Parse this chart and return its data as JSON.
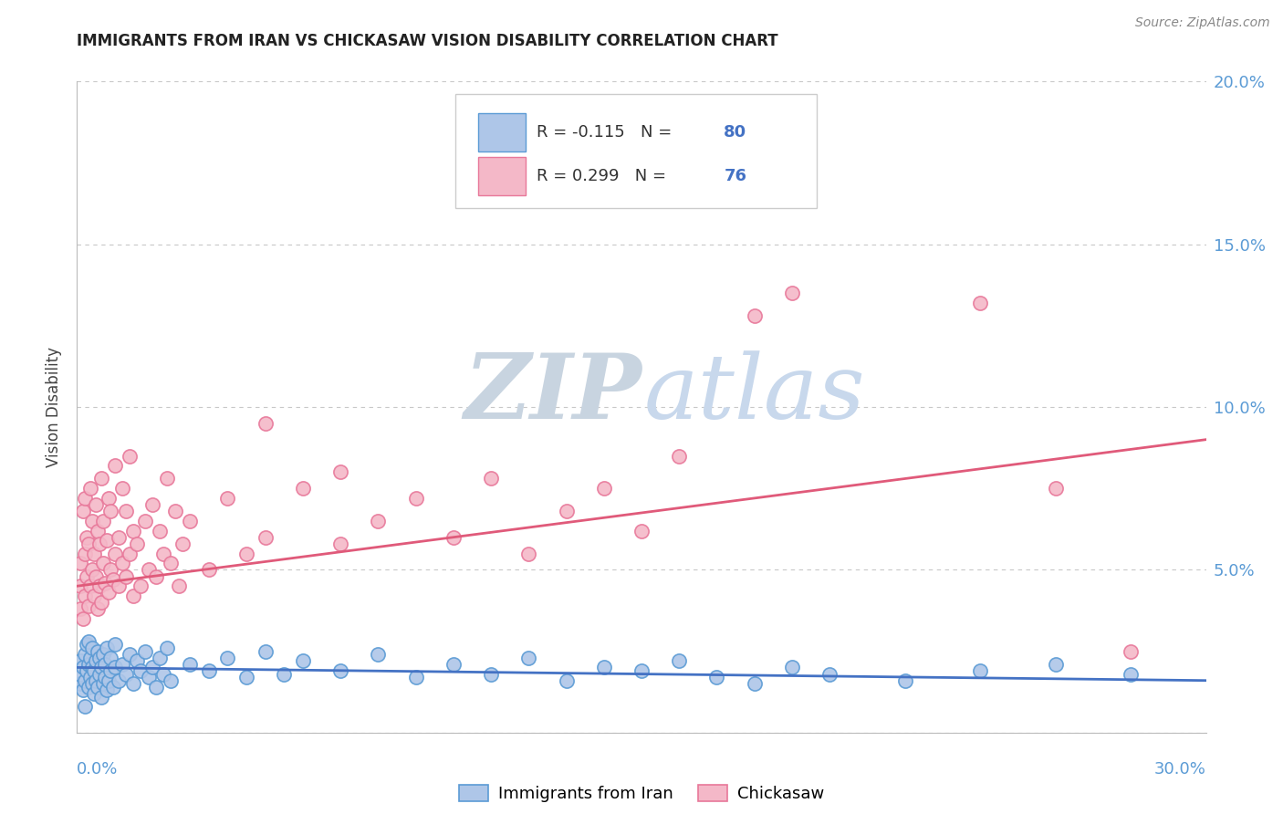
{
  "title": "IMMIGRANTS FROM IRAN VS CHICKASAW VISION DISABILITY CORRELATION CHART",
  "source": "Source: ZipAtlas.com",
  "ylabel": "Vision Disability",
  "legend_bottom": [
    "Immigrants from Iran",
    "Chickasaw"
  ],
  "blue_scatter": [
    [
      0.1,
      1.5
    ],
    [
      0.1,
      1.8
    ],
    [
      0.1,
      2.2
    ],
    [
      0.15,
      1.3
    ],
    [
      0.15,
      2.0
    ],
    [
      0.2,
      1.6
    ],
    [
      0.2,
      2.4
    ],
    [
      0.2,
      0.8
    ],
    [
      0.25,
      1.9
    ],
    [
      0.25,
      2.7
    ],
    [
      0.3,
      1.4
    ],
    [
      0.3,
      2.1
    ],
    [
      0.3,
      2.8
    ],
    [
      0.35,
      1.7
    ],
    [
      0.35,
      2.3
    ],
    [
      0.4,
      1.5
    ],
    [
      0.4,
      2.0
    ],
    [
      0.4,
      2.6
    ],
    [
      0.45,
      1.2
    ],
    [
      0.45,
      1.9
    ],
    [
      0.5,
      1.6
    ],
    [
      0.5,
      2.2
    ],
    [
      0.55,
      1.4
    ],
    [
      0.55,
      2.5
    ],
    [
      0.6,
      1.8
    ],
    [
      0.6,
      2.3
    ],
    [
      0.65,
      1.1
    ],
    [
      0.65,
      2.0
    ],
    [
      0.7,
      1.5
    ],
    [
      0.7,
      2.4
    ],
    [
      0.75,
      1.7
    ],
    [
      0.75,
      2.1
    ],
    [
      0.8,
      1.3
    ],
    [
      0.8,
      2.6
    ],
    [
      0.85,
      1.6
    ],
    [
      0.9,
      1.9
    ],
    [
      0.9,
      2.3
    ],
    [
      0.95,
      1.4
    ],
    [
      1.0,
      2.0
    ],
    [
      1.0,
      2.7
    ],
    [
      1.1,
      1.6
    ],
    [
      1.2,
      2.1
    ],
    [
      1.3,
      1.8
    ],
    [
      1.4,
      2.4
    ],
    [
      1.5,
      1.5
    ],
    [
      1.6,
      2.2
    ],
    [
      1.7,
      1.9
    ],
    [
      1.8,
      2.5
    ],
    [
      1.9,
      1.7
    ],
    [
      2.0,
      2.0
    ],
    [
      2.1,
      1.4
    ],
    [
      2.2,
      2.3
    ],
    [
      2.3,
      1.8
    ],
    [
      2.4,
      2.6
    ],
    [
      2.5,
      1.6
    ],
    [
      3.0,
      2.1
    ],
    [
      3.5,
      1.9
    ],
    [
      4.0,
      2.3
    ],
    [
      4.5,
      1.7
    ],
    [
      5.0,
      2.5
    ],
    [
      5.5,
      1.8
    ],
    [
      6.0,
      2.2
    ],
    [
      7.0,
      1.9
    ],
    [
      8.0,
      2.4
    ],
    [
      9.0,
      1.7
    ],
    [
      10.0,
      2.1
    ],
    [
      11.0,
      1.8
    ],
    [
      12.0,
      2.3
    ],
    [
      13.0,
      1.6
    ],
    [
      14.0,
      2.0
    ],
    [
      15.0,
      1.9
    ],
    [
      16.0,
      2.2
    ],
    [
      17.0,
      1.7
    ],
    [
      18.0,
      1.5
    ],
    [
      19.0,
      2.0
    ],
    [
      20.0,
      1.8
    ],
    [
      22.0,
      1.6
    ],
    [
      24.0,
      1.9
    ],
    [
      26.0,
      2.1
    ],
    [
      28.0,
      1.8
    ]
  ],
  "pink_scatter": [
    [
      0.1,
      3.8
    ],
    [
      0.1,
      4.5
    ],
    [
      0.1,
      5.2
    ],
    [
      0.15,
      3.5
    ],
    [
      0.15,
      6.8
    ],
    [
      0.2,
      4.2
    ],
    [
      0.2,
      5.5
    ],
    [
      0.2,
      7.2
    ],
    [
      0.25,
      4.8
    ],
    [
      0.25,
      6.0
    ],
    [
      0.3,
      3.9
    ],
    [
      0.3,
      5.8
    ],
    [
      0.35,
      4.5
    ],
    [
      0.35,
      7.5
    ],
    [
      0.4,
      5.0
    ],
    [
      0.4,
      6.5
    ],
    [
      0.45,
      4.2
    ],
    [
      0.45,
      5.5
    ],
    [
      0.5,
      4.8
    ],
    [
      0.5,
      7.0
    ],
    [
      0.55,
      3.8
    ],
    [
      0.55,
      6.2
    ],
    [
      0.6,
      4.5
    ],
    [
      0.6,
      5.8
    ],
    [
      0.65,
      4.0
    ],
    [
      0.65,
      7.8
    ],
    [
      0.7,
      5.2
    ],
    [
      0.7,
      6.5
    ],
    [
      0.75,
      4.6
    ],
    [
      0.8,
      5.9
    ],
    [
      0.85,
      4.3
    ],
    [
      0.85,
      7.2
    ],
    [
      0.9,
      5.0
    ],
    [
      0.9,
      6.8
    ],
    [
      0.95,
      4.7
    ],
    [
      1.0,
      5.5
    ],
    [
      1.0,
      8.2
    ],
    [
      1.1,
      4.5
    ],
    [
      1.1,
      6.0
    ],
    [
      1.2,
      5.2
    ],
    [
      1.2,
      7.5
    ],
    [
      1.3,
      4.8
    ],
    [
      1.3,
      6.8
    ],
    [
      1.4,
      5.5
    ],
    [
      1.4,
      8.5
    ],
    [
      1.5,
      4.2
    ],
    [
      1.5,
      6.2
    ],
    [
      1.6,
      5.8
    ],
    [
      1.7,
      4.5
    ],
    [
      1.8,
      6.5
    ],
    [
      1.9,
      5.0
    ],
    [
      2.0,
      7.0
    ],
    [
      2.1,
      4.8
    ],
    [
      2.2,
      6.2
    ],
    [
      2.3,
      5.5
    ],
    [
      2.4,
      7.8
    ],
    [
      2.5,
      5.2
    ],
    [
      2.6,
      6.8
    ],
    [
      2.7,
      4.5
    ],
    [
      2.8,
      5.8
    ],
    [
      3.0,
      6.5
    ],
    [
      3.5,
      5.0
    ],
    [
      4.0,
      7.2
    ],
    [
      4.5,
      5.5
    ],
    [
      5.0,
      6.0
    ],
    [
      5.0,
      9.5
    ],
    [
      6.0,
      7.5
    ],
    [
      7.0,
      5.8
    ],
    [
      7.0,
      8.0
    ],
    [
      8.0,
      6.5
    ],
    [
      9.0,
      7.2
    ],
    [
      10.0,
      6.0
    ],
    [
      11.0,
      7.8
    ],
    [
      12.0,
      5.5
    ],
    [
      13.0,
      6.8
    ],
    [
      14.0,
      7.5
    ],
    [
      15.0,
      6.2
    ],
    [
      16.0,
      8.5
    ],
    [
      18.0,
      12.8
    ],
    [
      19.0,
      13.5
    ],
    [
      24.0,
      13.2
    ],
    [
      26.0,
      7.5
    ],
    [
      28.0,
      2.5
    ]
  ],
  "blue_line_x": [
    0,
    30
  ],
  "blue_line_y": [
    2.0,
    1.6
  ],
  "pink_line_x": [
    0,
    30
  ],
  "pink_line_y": [
    4.5,
    9.0
  ],
  "xlim": [
    0,
    30
  ],
  "ylim": [
    0,
    20
  ],
  "yticks": [
    0,
    5,
    10,
    15,
    20
  ],
  "ytick_labels_right": [
    "",
    "5.0%",
    "10.0%",
    "15.0%",
    "20.0%"
  ],
  "blue_color": "#aec6e8",
  "blue_edge_color": "#5b9bd5",
  "blue_line_color": "#4472c4",
  "pink_color": "#f4b8c8",
  "pink_edge_color": "#e8789a",
  "pink_line_color": "#e05a7a",
  "title_color": "#222222",
  "axis_label_color": "#5b9bd5",
  "grid_color": "#c8c8c8",
  "watermark_zip_color": "#c8d4e0",
  "watermark_atlas_color": "#c8d8ec"
}
